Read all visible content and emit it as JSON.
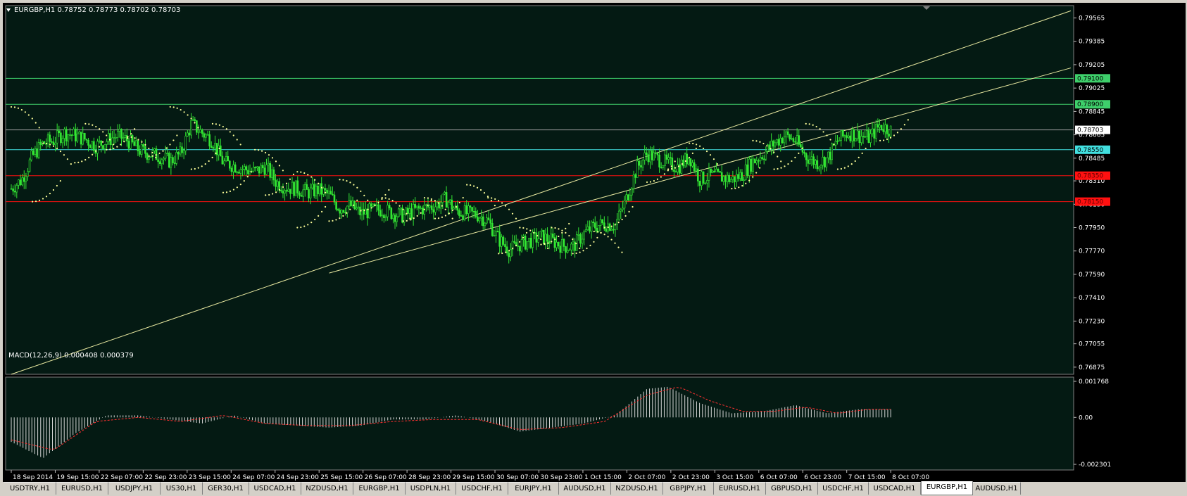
{
  "symbol_header": "EURGBP,H1  0.78752 0.78773 0.78702 0.78703",
  "macd_header": "MACD(12,26,9) 0.000408 0.000379",
  "colors": {
    "background": "#041a13",
    "candle": "#33e633",
    "sar": "#ffff99",
    "channel": "#e8e8a0",
    "green_level": "#3ecf6b",
    "cyan_level": "#42e0e0",
    "red_level": "#ff1010",
    "grid_text": "#ffffff",
    "macd_hist": "#d8d8d8",
    "macd_signal": "#ff3030"
  },
  "chart_data": [
    {
      "type": "candlestick",
      "symbol": "EURGBP",
      "timeframe": "H1",
      "ylim": [
        0.7682,
        0.7966
      ],
      "y_ticks": [
        "0.79565",
        "0.79385",
        "0.79205",
        "0.79025",
        "0.78845",
        "0.78665",
        "0.78485",
        "0.78310",
        "0.78130",
        "0.77950",
        "0.77770",
        "0.77590",
        "0.77410",
        "0.77230",
        "0.77055",
        "0.76875"
      ],
      "x_ticks": [
        "18 Sep 2014",
        "19 Sep 15:00",
        "22 Sep 07:00",
        "22 Sep 23:00",
        "23 Sep 15:00",
        "24 Sep 07:00",
        "24 Sep 23:00",
        "25 Sep 15:00",
        "26 Sep 07:00",
        "28 Sep 23:00",
        "29 Sep 15:00",
        "30 Sep 07:00",
        "30 Sep 23:00",
        "1 Oct 15:00",
        "2 Oct 07:00",
        "2 Oct 23:00",
        "3 Oct 15:00",
        "6 Oct 07:00",
        "6 Oct 23:00",
        "7 Oct 15:00",
        "8 Oct 07:00"
      ],
      "close_path": [
        [
          0,
          0.7825
        ],
        [
          1,
          0.7832
        ],
        [
          2,
          0.785
        ],
        [
          3,
          0.786
        ],
        [
          4,
          0.7862
        ],
        [
          5,
          0.7868
        ],
        [
          6,
          0.7866
        ],
        [
          7,
          0.7863
        ],
        [
          8,
          0.7858
        ],
        [
          9,
          0.7862
        ],
        [
          10,
          0.7866
        ],
        [
          11,
          0.7862
        ],
        [
          12,
          0.7855
        ],
        [
          13,
          0.7852
        ],
        [
          14,
          0.785
        ],
        [
          15,
          0.7846
        ],
        [
          16,
          0.7852
        ],
        [
          17,
          0.7875
        ],
        [
          18,
          0.7868
        ],
        [
          19,
          0.7862
        ],
        [
          20,
          0.7845
        ],
        [
          21,
          0.7843
        ],
        [
          22,
          0.784
        ],
        [
          23,
          0.7838
        ],
        [
          24,
          0.7842
        ],
        [
          25,
          0.783
        ],
        [
          26,
          0.7826
        ],
        [
          27,
          0.7825
        ],
        [
          28,
          0.7822
        ],
        [
          29,
          0.7824
        ],
        [
          30,
          0.782
        ],
        [
          31,
          0.781
        ],
        [
          32,
          0.7812
        ],
        [
          33,
          0.7806
        ],
        [
          34,
          0.7808
        ],
        [
          35,
          0.7809
        ],
        [
          36,
          0.7806
        ],
        [
          37,
          0.7804
        ],
        [
          38,
          0.7808
        ],
        [
          39,
          0.781
        ],
        [
          40,
          0.7812
        ],
        [
          41,
          0.7817
        ],
        [
          42,
          0.7808
        ],
        [
          43,
          0.7806
        ],
        [
          44,
          0.7805
        ],
        [
          45,
          0.78
        ],
        [
          46,
          0.7786
        ],
        [
          47,
          0.7778
        ],
        [
          48,
          0.7782
        ],
        [
          49,
          0.7785
        ],
        [
          50,
          0.7788
        ],
        [
          51,
          0.7785
        ],
        [
          52,
          0.7781
        ],
        [
          53,
          0.778
        ],
        [
          54,
          0.779
        ],
        [
          55,
          0.7796
        ],
        [
          56,
          0.7798
        ],
        [
          57,
          0.7797
        ],
        [
          58,
          0.7816
        ],
        [
          59,
          0.784
        ],
        [
          60,
          0.7852
        ],
        [
          61,
          0.7848
        ],
        [
          62,
          0.7844
        ],
        [
          63,
          0.7842
        ],
        [
          64,
          0.785
        ],
        [
          65,
          0.7832
        ],
        [
          66,
          0.7835
        ],
        [
          67,
          0.7834
        ],
        [
          68,
          0.7832
        ],
        [
          69,
          0.7836
        ],
        [
          70,
          0.7846
        ],
        [
          71,
          0.7852
        ],
        [
          72,
          0.786
        ],
        [
          73,
          0.7866
        ],
        [
          74,
          0.7862
        ],
        [
          75,
          0.785
        ],
        [
          76,
          0.7845
        ],
        [
          77,
          0.7848
        ],
        [
          78,
          0.7862
        ],
        [
          79,
          0.7868
        ],
        [
          80,
          0.7866
        ],
        [
          81,
          0.7864
        ],
        [
          82,
          0.7874
        ],
        [
          83,
          0.787
        ]
      ],
      "parabolic_sar": {
        "highs": [
          [
            0,
            0.7888
          ],
          [
            3,
            0.786
          ],
          [
            7,
            0.7875
          ],
          [
            11,
            0.7865
          ],
          [
            15,
            0.7888
          ],
          [
            19,
            0.7875
          ],
          [
            23,
            0.7855
          ],
          [
            27,
            0.7838
          ],
          [
            31,
            0.7832
          ],
          [
            35,
            0.7818
          ],
          [
            39,
            0.7818
          ],
          [
            43,
            0.7828
          ],
          [
            45,
            0.7818
          ],
          [
            48,
            0.7795
          ],
          [
            51,
            0.7795
          ],
          [
            55,
            0.7792
          ],
          [
            64,
            0.786
          ],
          [
            70,
            0.7862
          ],
          [
            75,
            0.7875
          ]
        ],
        "lows": [
          [
            2,
            0.7815
          ],
          [
            6,
            0.7845
          ],
          [
            9,
            0.7855
          ],
          [
            13,
            0.785
          ],
          [
            17,
            0.784
          ],
          [
            20,
            0.7822
          ],
          [
            24,
            0.782
          ],
          [
            27,
            0.7795
          ],
          [
            30,
            0.78
          ],
          [
            33,
            0.7808
          ],
          [
            37,
            0.78
          ],
          [
            40,
            0.7802
          ],
          [
            46,
            0.7775
          ],
          [
            50,
            0.7782
          ],
          [
            53,
            0.7775
          ],
          [
            56,
            0.7795
          ],
          [
            60,
            0.783
          ],
          [
            62,
            0.784
          ],
          [
            68,
            0.7825
          ],
          [
            72,
            0.784
          ],
          [
            78,
            0.784
          ],
          [
            82,
            0.7862
          ]
        ]
      },
      "horizontal_levels": [
        {
          "price": 0.791,
          "label": "0.79100",
          "kind": "green"
        },
        {
          "price": 0.789,
          "label": "0.78900",
          "kind": "green"
        },
        {
          "price": 0.78703,
          "label": "0.78703",
          "kind": "current"
        },
        {
          "price": 0.7855,
          "label": "0.78550",
          "kind": "cyan"
        },
        {
          "price": 0.7835,
          "label": "0.78350",
          "kind": "red"
        },
        {
          "price": 0.7815,
          "label": "0.78150",
          "kind": "red"
        }
      ],
      "channel_lines": [
        {
          "from": [
            0,
            0.7682
          ],
          "to": [
            100,
            0.7962
          ]
        },
        {
          "from": [
            30,
            0.776
          ],
          "to": [
            100,
            0.7918
          ]
        }
      ]
    },
    {
      "type": "bar",
      "name": "MACD(12,26,9)",
      "ylim": [
        -0.002301,
        0.001768
      ],
      "y_ticks": [
        "0.001768",
        "0.00",
        "-0.002301"
      ],
      "macd_path": [
        [
          0,
          -0.0012
        ],
        [
          3,
          -0.002
        ],
        [
          6,
          -0.0008
        ],
        [
          9,
          0.0001
        ],
        [
          12,
          0.0001
        ],
        [
          15,
          -0.0001
        ],
        [
          18,
          -0.0003
        ],
        [
          21,
          0.0001
        ],
        [
          24,
          -0.0003
        ],
        [
          27,
          -0.0004
        ],
        [
          30,
          -0.0005
        ],
        [
          33,
          -0.0004
        ],
        [
          36,
          -0.0001
        ],
        [
          39,
          -0.0001
        ],
        [
          42,
          0.0001
        ],
        [
          45,
          -0.0002
        ],
        [
          48,
          -0.0007
        ],
        [
          51,
          -0.0005
        ],
        [
          54,
          -0.0003
        ],
        [
          57,
          0.0001
        ],
        [
          60,
          0.0014
        ],
        [
          62,
          0.0015
        ],
        [
          65,
          0.0007
        ],
        [
          68,
          0.0002
        ],
        [
          71,
          0.0003
        ],
        [
          74,
          0.0006
        ],
        [
          77,
          0.0002
        ],
        [
          80,
          0.0004
        ],
        [
          83,
          0.0004
        ]
      ],
      "signal_path": [
        [
          0,
          -0.0011
        ],
        [
          4,
          -0.0016
        ],
        [
          8,
          -0.0002
        ],
        [
          12,
          0.0
        ],
        [
          16,
          -0.0002
        ],
        [
          20,
          0.0001
        ],
        [
          24,
          -0.0003
        ],
        [
          28,
          -0.0004
        ],
        [
          32,
          -0.0004
        ],
        [
          36,
          -0.0002
        ],
        [
          40,
          -0.0001
        ],
        [
          44,
          -0.0001
        ],
        [
          48,
          -0.0006
        ],
        [
          52,
          -0.0005
        ],
        [
          56,
          -0.0002
        ],
        [
          60,
          0.0011
        ],
        [
          63,
          0.0015
        ],
        [
          66,
          0.0008
        ],
        [
          69,
          0.0003
        ],
        [
          72,
          0.0003
        ],
        [
          75,
          0.0005
        ],
        [
          78,
          0.0002
        ],
        [
          81,
          0.0004
        ],
        [
          83,
          0.0004
        ]
      ]
    }
  ],
  "tabs": [
    "USDTRY,H1",
    "EURUSD,H1",
    "USDJPY,H1",
    "US30,H1",
    "GER30,H1",
    "USDCAD,H1",
    "NZDUSD,H1",
    "EURGBP,H1",
    "USDPLN,H1",
    "USDCHF,H1",
    "EURJPY,H1",
    "AUDUSD,H1",
    "NZDUSD,H1",
    "GBPJPY,H1",
    "EURUSD,H1",
    "GBPUSD,H1",
    "USDCHF,H1",
    "USDCAD,H1",
    "EURGBP,H1",
    "AUDUSD,H1"
  ],
  "active_tab": 18
}
